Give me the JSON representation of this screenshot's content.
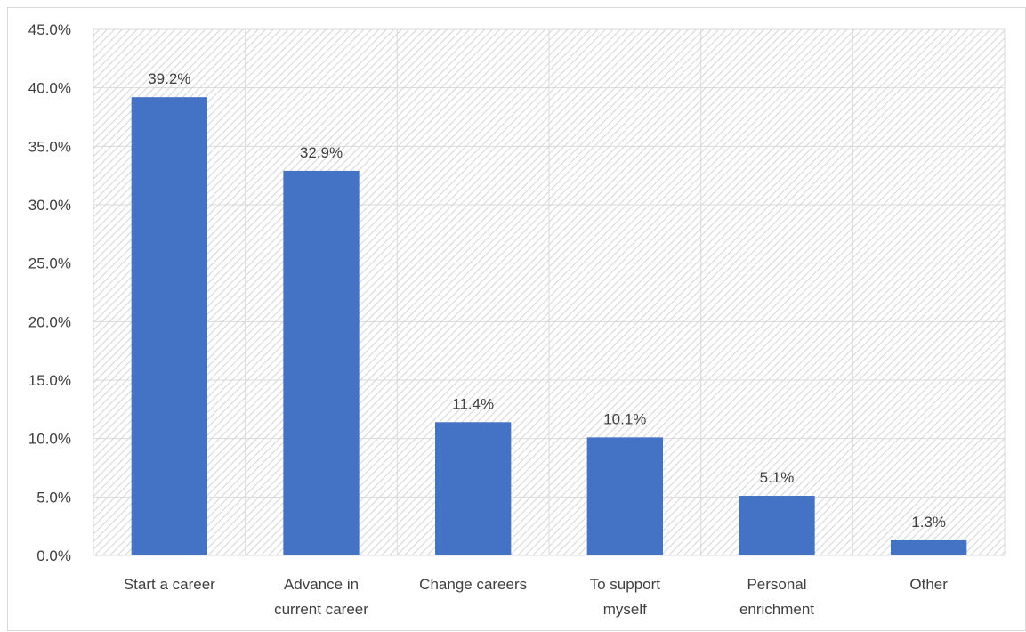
{
  "chart_data": {
    "type": "bar",
    "categories": [
      [
        "Start a career"
      ],
      [
        "Advance in",
        "current career"
      ],
      [
        "Change careers"
      ],
      [
        "To support",
        "myself"
      ],
      [
        "Personal",
        "enrichment"
      ],
      [
        "Other"
      ]
    ],
    "values": [
      39.2,
      32.9,
      11.4,
      10.1,
      5.1,
      1.3
    ],
    "data_labels": [
      "39.2%",
      "32.9%",
      "11.4%",
      "10.1%",
      "5.1%",
      "1.3%"
    ],
    "y_ticks": [
      "0.0%",
      "5.0%",
      "10.0%",
      "15.0%",
      "20.0%",
      "25.0%",
      "30.0%",
      "35.0%",
      "40.0%",
      "45.0%"
    ],
    "ylim": [
      0,
      45
    ],
    "title": "",
    "xlabel": "",
    "ylabel": "",
    "grid": true,
    "bar_color": "#4472C4",
    "grid_color": "#d9d9d9",
    "plot_background": "hatched-light-gray"
  }
}
